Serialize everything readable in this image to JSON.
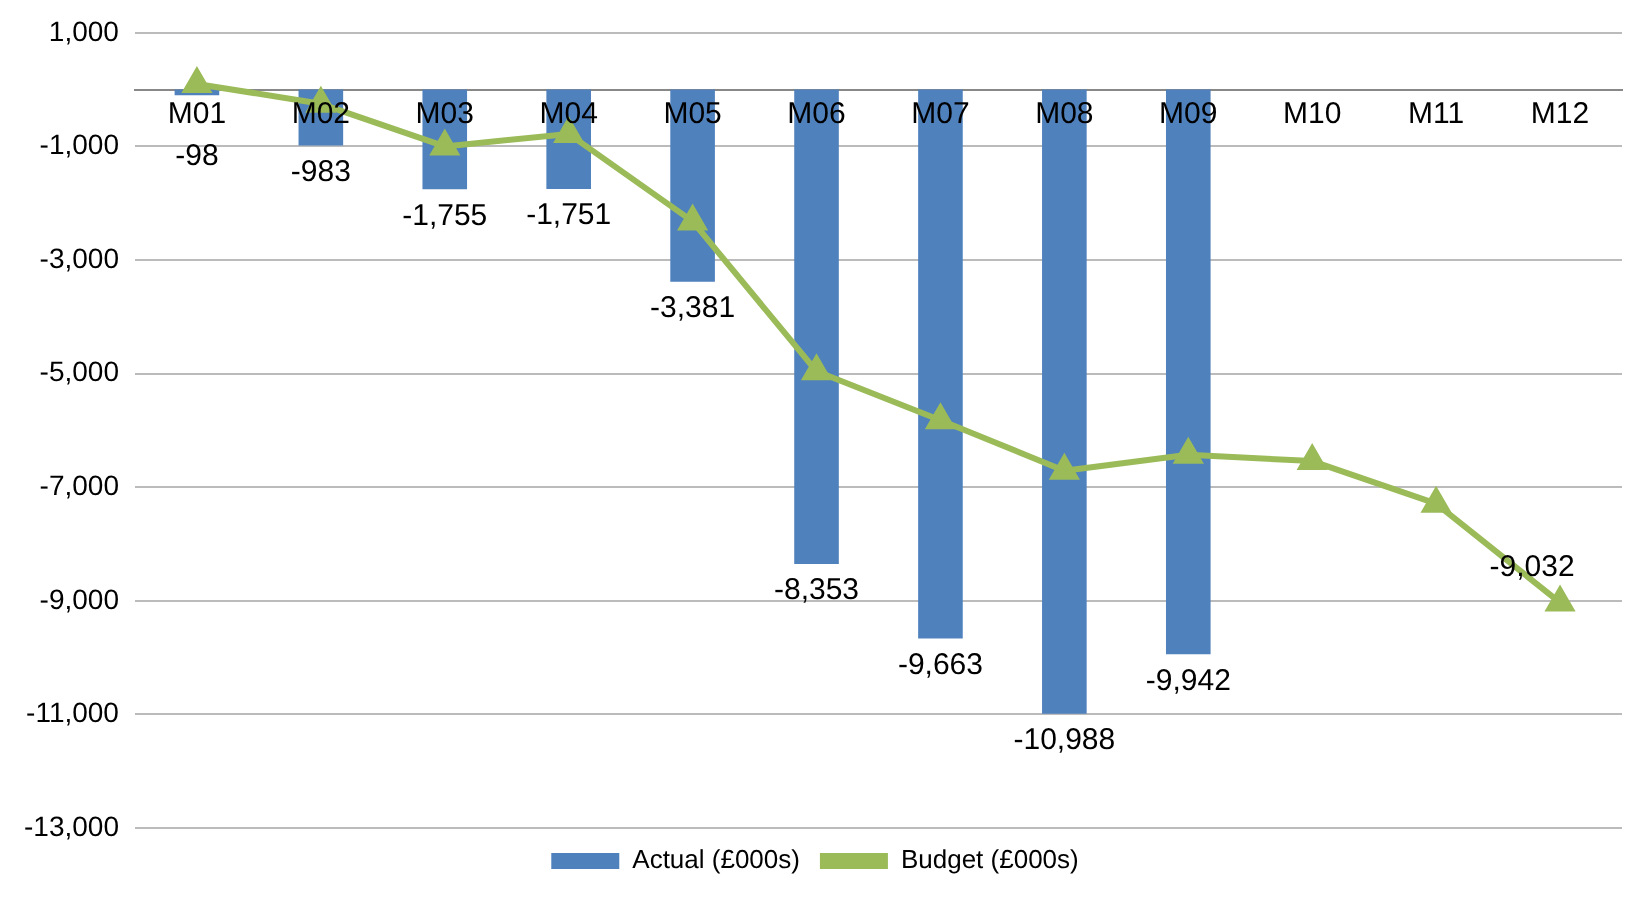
{
  "chart_data": {
    "type": "bar",
    "categories": [
      "M01",
      "M02",
      "M03",
      "M04",
      "M05",
      "M06",
      "M07",
      "M08",
      "M09",
      "M10",
      "M11",
      "M12"
    ],
    "series": [
      {
        "name": "Actual (£000s)",
        "color": "#4f81bd",
        "values": [
          -98,
          -983,
          -1755,
          -1751,
          -3381,
          -8353,
          -9663,
          -10988,
          -9942,
          null,
          null,
          null
        ],
        "value_labels": [
          "-98",
          "-983",
          "-1,755",
          "-1,751",
          "-3,381",
          "-8,353",
          "-9,663",
          "-10,988",
          "-9,942",
          null,
          null,
          null
        ]
      },
      {
        "name": "Budget (£000s)",
        "type": "line",
        "color": "#9bbb59",
        "marker": "triangle",
        "line_style": "solid",
        "values": [
          100,
          -250,
          -1000,
          -780,
          -2320,
          -4960,
          -5820,
          -6710,
          -6430,
          -6540,
          -7290,
          -9032
        ],
        "value_labels": [
          null,
          null,
          null,
          null,
          null,
          null,
          null,
          null,
          null,
          null,
          null,
          "-9,032"
        ]
      }
    ],
    "ylim": [
      -13000,
      1000
    ],
    "yticks": [
      {
        "value": 1000,
        "label": "1,000"
      },
      {
        "value": -1000,
        "label": "-1,000"
      },
      {
        "value": -3000,
        "label": "-3,000"
      },
      {
        "value": -5000,
        "label": "-5,000"
      },
      {
        "value": -7000,
        "label": "-7,000"
      },
      {
        "value": -9000,
        "label": "-9,000"
      },
      {
        "value": -11000,
        "label": "-11,000"
      },
      {
        "value": -13000,
        "label": "-13,000"
      }
    ],
    "grid": "y",
    "legend": "bottom"
  }
}
